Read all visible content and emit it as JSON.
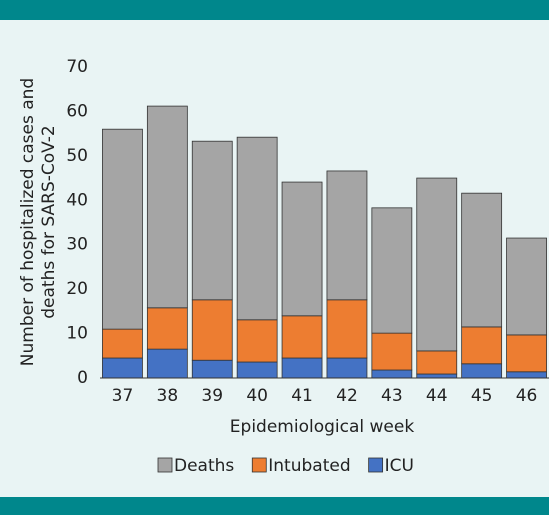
{
  "chart_data": {
    "type": "stacked_bar",
    "y_label": [
      "Number of hospitalized cases and",
      "deaths for SARS-CoV-2"
    ],
    "x_label": "Epidemiological week",
    "categories": [
      "37",
      "38",
      "39",
      "40",
      "41",
      "42",
      "43",
      "44",
      "45",
      "46"
    ],
    "series": [
      {
        "name": "ICU",
        "color": "#4472c4",
        "values": [
          4.5,
          6.5,
          4.0,
          3.6,
          4.5,
          4.5,
          1.8,
          0.9,
          3.2,
          1.4
        ]
      },
      {
        "name": "Intubated",
        "color": "#ed7d31",
        "values": [
          6.5,
          9.3,
          13.6,
          9.5,
          9.5,
          13.1,
          8.3,
          5.2,
          8.3,
          8.3
        ]
      },
      {
        "name": "Deaths",
        "color": "#a5a5a5",
        "values": [
          45.0,
          45.4,
          35.7,
          41.1,
          30.1,
          29.0,
          28.2,
          38.9,
          30.1,
          21.8
        ]
      }
    ],
    "ylim": [
      0,
      70
    ],
    "yticks": [
      0,
      10,
      20,
      30,
      40,
      50,
      60,
      70
    ],
    "grid": false
  }
}
